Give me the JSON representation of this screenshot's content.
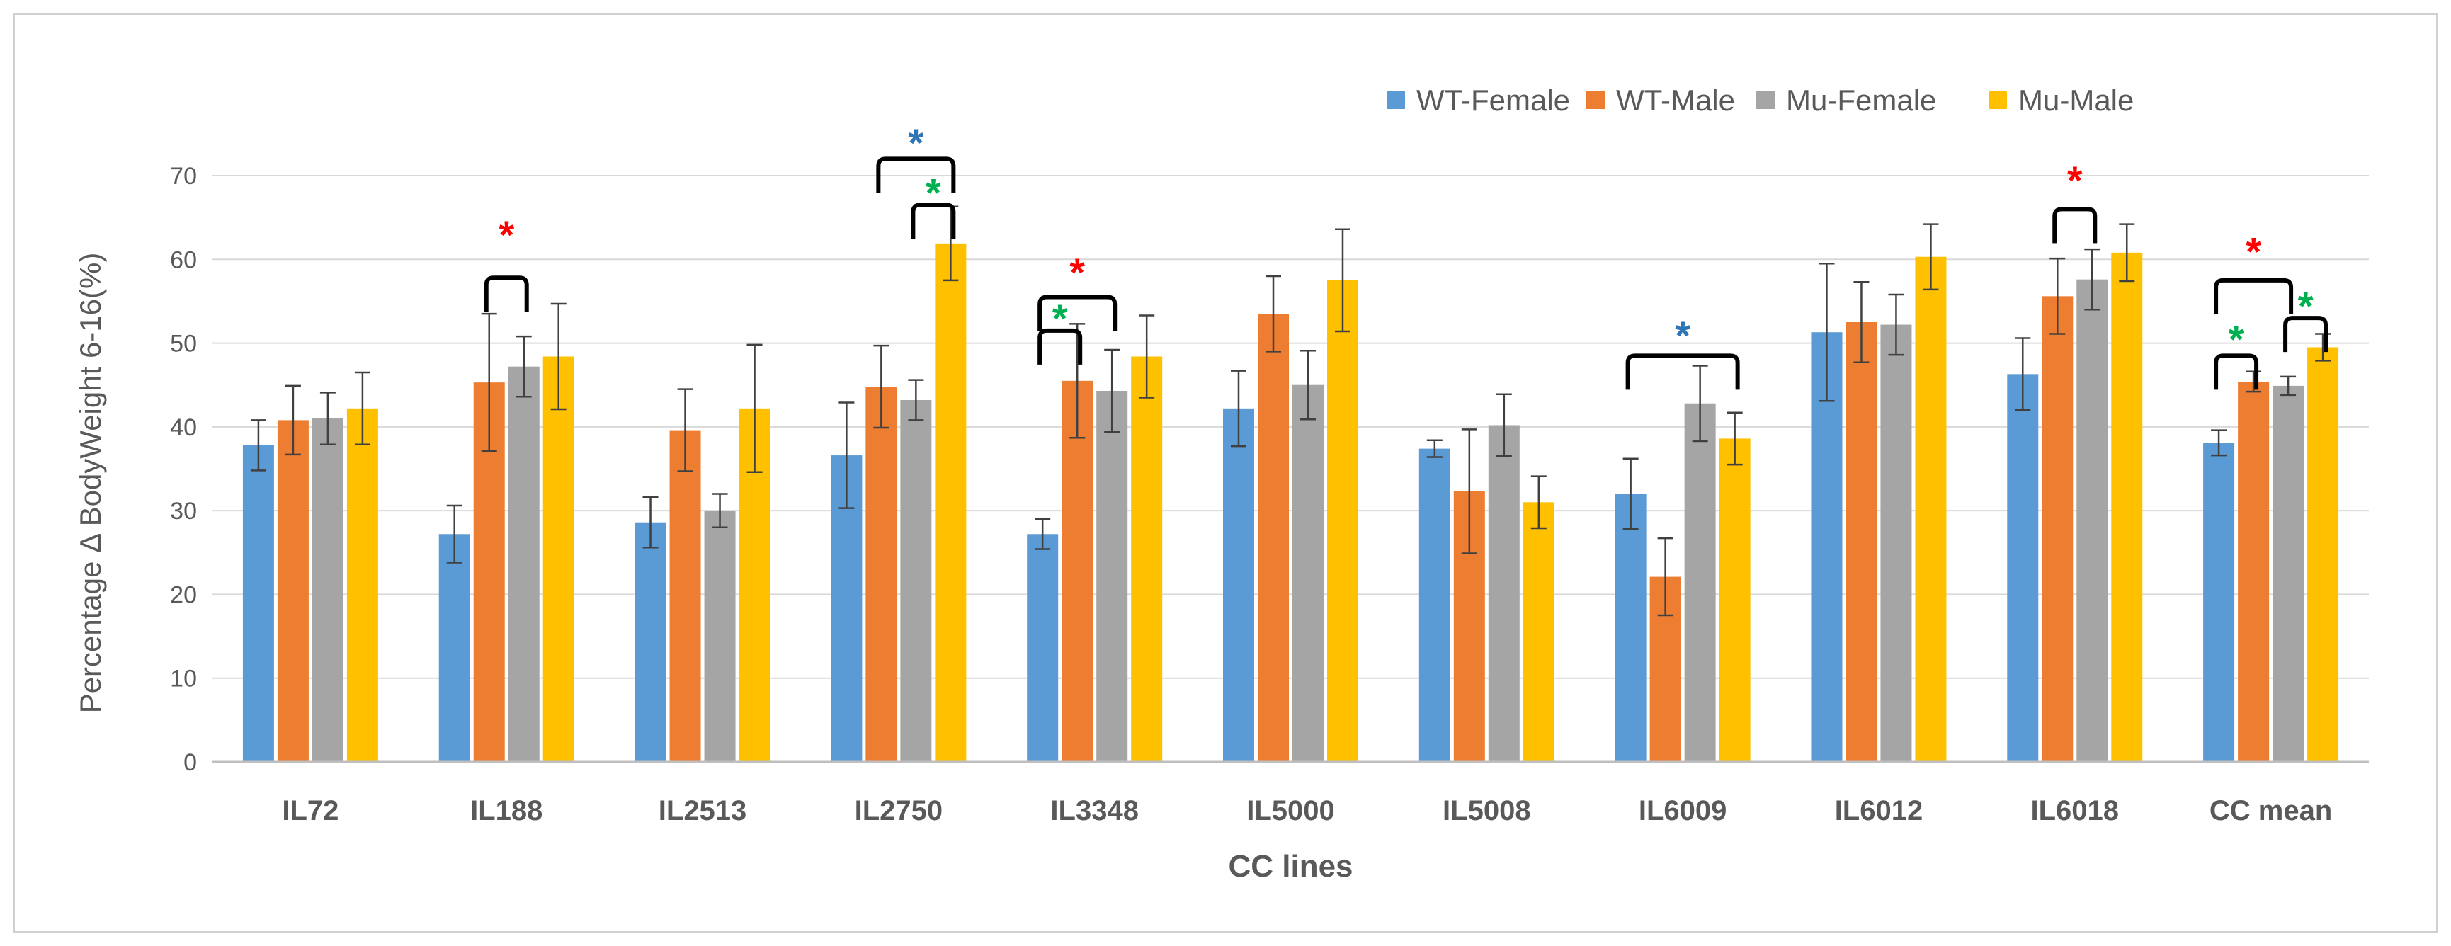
{
  "chart_data": {
    "type": "bar",
    "title": "",
    "xlabel": "CC lines",
    "ylabel": "Percentage Δ BodyWeight 6-16(%)",
    "ylim": [
      0,
      70
    ],
    "yticks": [
      "0",
      "10",
      "20",
      "30",
      "40",
      "50",
      "60",
      "70"
    ],
    "grid": true,
    "legend_position": "top-right",
    "categories": [
      "IL72",
      "IL188",
      "IL2513",
      "IL2750",
      "IL3348",
      "IL5000",
      "IL5008",
      "IL6009",
      "IL6012",
      "IL6018",
      "CC mean"
    ],
    "series": [
      {
        "name": "WT-Female",
        "color": "#5b9bd5",
        "values": [
          37.8,
          27.2,
          28.6,
          36.6,
          27.2,
          42.2,
          37.4,
          32.0,
          51.3,
          46.3,
          38.1
        ],
        "errors": [
          3.0,
          3.4,
          3.0,
          6.3,
          1.8,
          4.5,
          1.0,
          4.2,
          8.2,
          4.3,
          1.5
        ]
      },
      {
        "name": "WT-Male",
        "color": "#ed7d31",
        "values": [
          40.8,
          45.3,
          39.6,
          44.8,
          45.5,
          53.5,
          32.3,
          22.1,
          52.5,
          55.6,
          45.4
        ],
        "errors": [
          4.1,
          8.2,
          4.9,
          4.9,
          6.8,
          4.5,
          7.4,
          4.6,
          4.8,
          4.5,
          1.2
        ]
      },
      {
        "name": "Mu-Female",
        "color": "#a5a5a5",
        "values": [
          41.0,
          47.2,
          30.0,
          43.2,
          44.3,
          45.0,
          40.2,
          42.8,
          52.2,
          57.6,
          44.9
        ],
        "errors": [
          3.1,
          3.6,
          2.0,
          2.4,
          4.9,
          4.1,
          3.7,
          4.5,
          3.6,
          3.6,
          1.1
        ]
      },
      {
        "name": "Mu-Male",
        "color": "#ffc000",
        "values": [
          42.2,
          48.4,
          42.2,
          61.9,
          48.4,
          57.5,
          31.0,
          38.6,
          60.3,
          60.8,
          49.5
        ],
        "errors": [
          4.3,
          6.3,
          7.6,
          4.4,
          4.9,
          6.1,
          3.1,
          3.1,
          3.9,
          3.4,
          1.6
        ]
      }
    ],
    "significance_brackets": [
      {
        "category": "IL188",
        "from": "WT-Male",
        "to": "Mu-Female",
        "height": 57.8,
        "star_y": 63.5,
        "color": "#ff0000",
        "label": "*"
      },
      {
        "category": "IL2750",
        "from": "WT-Male",
        "to": "Mu-Male",
        "height": 72.0,
        "star_y": 74.5,
        "color": "#2e75b6",
        "label": "*"
      },
      {
        "category": "IL2750",
        "from": "Mu-Female",
        "to": "Mu-Male",
        "height": 66.5,
        "star_y": 68.5,
        "color": "#00b050",
        "label": "*"
      },
      {
        "category": "IL3348",
        "from": "WT-Female",
        "to": "Mu-Female",
        "height": 55.5,
        "star_y": 59.0,
        "color": "#ff0000",
        "label": "*"
      },
      {
        "category": "IL3348",
        "from": "WT-Female",
        "to": "WT-Male",
        "height": 51.5,
        "star_y": 53.5,
        "color": "#00b050",
        "label": "*"
      },
      {
        "category": "IL6009",
        "from": "WT-Female",
        "to": "Mu-Male",
        "height": 48.5,
        "star_y": 51.5,
        "color": "#2e75b6",
        "label": "*"
      },
      {
        "category": "IL6018",
        "from": "WT-Male",
        "to": "Mu-Female",
        "height": 66.0,
        "star_y": 70.0,
        "color": "#ff0000",
        "label": "*"
      },
      {
        "category": "CC mean",
        "from": "WT-Female",
        "to": "Mu-Female",
        "height": 57.5,
        "star_y": 61.5,
        "color": "#ff0000",
        "label": "*"
      },
      {
        "category": "CC mean",
        "from": "WT-Female",
        "to": "WT-Male",
        "height": 48.5,
        "star_y": 51.0,
        "color": "#00b050",
        "label": "*"
      },
      {
        "category": "CC mean",
        "from": "Mu-Female",
        "to": "Mu-Male",
        "height": 53.0,
        "star_y": 55.0,
        "color": "#00b050",
        "label": "*"
      }
    ]
  }
}
